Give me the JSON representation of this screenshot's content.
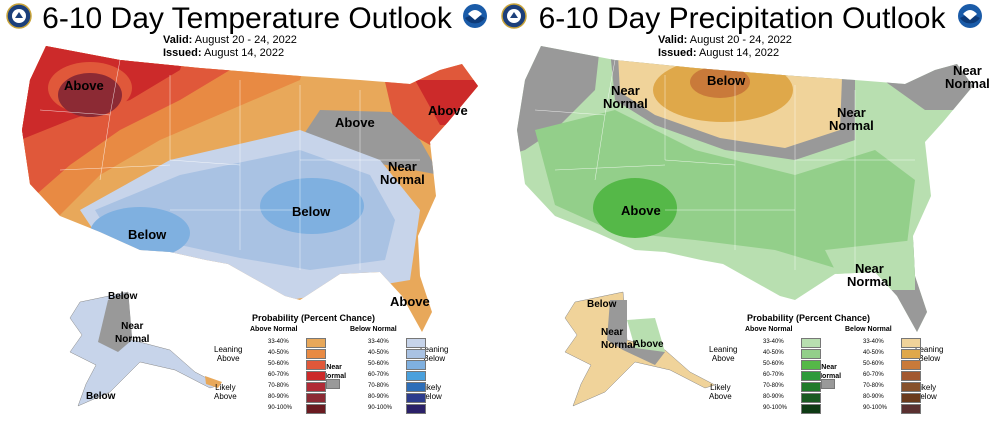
{
  "panels": [
    {
      "title": "6-10 Day Temperature Outlook",
      "valid_label": "Valid:",
      "valid_value": "August 20 - 24, 2022",
      "issued_label": "Issued:",
      "issued_value": "August 14, 2022",
      "map_labels": {
        "above_nw": "Above",
        "above_glakes": "Above",
        "above_ne": "Above",
        "near_normal_1": "Near",
        "near_normal_2": "Normal",
        "below_sw": "Below",
        "below_central": "Below",
        "above_fl": "Above",
        "ak_below_n": "Below",
        "ak_near_1": "Near",
        "ak_near_2": "Normal",
        "ak_below_s": "Below"
      },
      "legend": {
        "title": "Probability (Percent Chance)",
        "col_a_header": "Above Normal",
        "col_b_header": "Below Normal",
        "leaning_a_1": "Leaning",
        "leaning_a_2": "Above",
        "likely_a_1": "Likely",
        "likely_a_2": "Above",
        "leaning_b_1": "Leaning",
        "leaning_b_2": "Below",
        "likely_b_1": "Likely",
        "likely_b_2": "Below",
        "near_1": "Near",
        "near_2": "Normal",
        "pcts": [
          "33-40%",
          "40-50%",
          "50-60%",
          "60-70%",
          "70-80%",
          "80-90%",
          "90-100%"
        ],
        "colors_a": [
          "#e8a85a",
          "#e88a43",
          "#e0583a",
          "#cc2a2a",
          "#b02a36",
          "#8c2a34",
          "#6a1a20"
        ],
        "colors_b": [
          "#c7d4ea",
          "#a9c2e3",
          "#7fb0e0",
          "#4aa0dc",
          "#2e6eb8",
          "#2d3c8c",
          "#2a2068"
        ],
        "near_color": "#999999"
      }
    },
    {
      "title": "6-10 Day Precipitation Outlook",
      "valid_label": "Valid:",
      "valid_value": "August 20 - 24, 2022",
      "issued_label": "Issued:",
      "issued_value": "August 14, 2022",
      "map_labels": {
        "near_nw_1": "Near",
        "near_nw_2": "Normal",
        "below_n": "Below",
        "near_mw_1": "Near",
        "near_mw_2": "Normal",
        "near_ne_1": "Near",
        "near_ne_2": "Normal",
        "above_sw": "Above",
        "near_se_1": "Near",
        "near_se_2": "Normal",
        "ak_below": "Below",
        "ak_near_1": "Near",
        "ak_near_2": "Normal",
        "ak_above": "Above"
      },
      "legend": {
        "title": "Probability (Percent Chance)",
        "col_a_header": "Above Normal",
        "col_b_header": "Below Normal",
        "leaning_a_1": "Leaning",
        "leaning_a_2": "Above",
        "likely_a_1": "Likely",
        "likely_a_2": "Above",
        "leaning_b_1": "Leaning",
        "leaning_b_2": "Below",
        "likely_b_1": "Likely",
        "likely_b_2": "Below",
        "near_1": "Near",
        "near_2": "Normal",
        "pcts": [
          "33-40%",
          "40-50%",
          "50-60%",
          "60-70%",
          "70-80%",
          "80-90%",
          "90-100%"
        ],
        "colors_a": [
          "#b8dfb0",
          "#93cf8a",
          "#55b848",
          "#2e9a3a",
          "#207a2a",
          "#1a5a22",
          "#0e3a14"
        ],
        "colors_b": [
          "#f0d39a",
          "#dfa84a",
          "#c97a3a",
          "#a25830",
          "#86512c",
          "#6a3a1c",
          "#5a3030"
        ],
        "near_color": "#999999"
      }
    }
  ]
}
